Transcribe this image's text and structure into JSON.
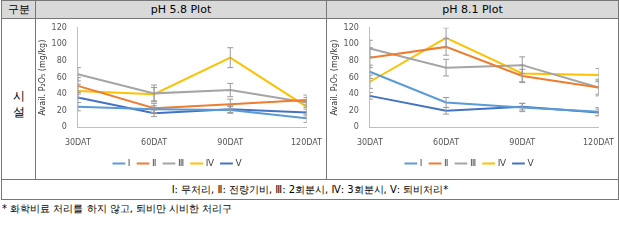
{
  "table": {
    "header": [
      "구분",
      "pH 5.8 Plot",
      "pH 8.1 Plot"
    ],
    "row_label": "시설",
    "legend_note": "Ⅰ: 무처리, Ⅱ: 전량기비, Ⅲ: 2회분시, Ⅳ: 3회분시, Ⅴ: 퇴비처리*"
  },
  "footnote": "* 화학비료 처리를 하지 않고, 퇴비만 시비한 처리구",
  "chart_data": [
    {
      "type": "line",
      "y_label": "Avail. P₂O₅ (mg/kg)",
      "categories": [
        "30DAT",
        "60DAT",
        "90DAT",
        "120DAT"
      ],
      "series": [
        {
          "name": "Ⅰ",
          "color": "#5b9bd5",
          "values": [
            25,
            22,
            21,
            11
          ],
          "errors": [
            5,
            4,
            4,
            5
          ]
        },
        {
          "name": "Ⅱ",
          "color": "#ed7d31",
          "values": [
            50,
            23,
            28,
            33
          ],
          "errors": [
            10,
            6,
            6,
            6
          ]
        },
        {
          "name": "Ⅲ",
          "color": "#a5a5a5",
          "values": [
            64,
            41,
            45,
            30
          ],
          "errors": [
            8,
            10,
            8,
            6
          ]
        },
        {
          "name": "Ⅳ",
          "color": "#ffc000",
          "values": [
            44,
            40,
            84,
            25
          ],
          "errors": [
            8,
            8,
            12,
            6
          ]
        },
        {
          "name": "Ⅴ",
          "color": "#4472c4",
          "values": [
            36,
            17,
            22,
            18
          ],
          "errors": [
            6,
            4,
            4,
            4
          ]
        }
      ],
      "ylim": [
        0,
        120
      ],
      "yticks": [
        0,
        20,
        40,
        60,
        80,
        100,
        120
      ],
      "grid": false,
      "legend": "bottom"
    },
    {
      "type": "line",
      "y_label": "Avail. P₂O₅ (mg/kg)",
      "categories": [
        "30DAT",
        "60DAT",
        "90DAT",
        "120DAT"
      ],
      "series": [
        {
          "name": "Ⅰ",
          "color": "#5b9bd5",
          "values": [
            67,
            30,
            24,
            19
          ],
          "errors": [
            8,
            6,
            5,
            5
          ]
        },
        {
          "name": "Ⅱ",
          "color": "#ed7d31",
          "values": [
            84,
            97,
            62,
            48
          ],
          "errors": [
            12,
            10,
            8,
            8
          ]
        },
        {
          "name": "Ⅲ",
          "color": "#a5a5a5",
          "values": [
            95,
            72,
            75,
            48
          ],
          "errors": [
            10,
            10,
            10,
            10
          ]
        },
        {
          "name": "Ⅳ",
          "color": "#ffc000",
          "values": [
            55,
            108,
            65,
            63
          ],
          "errors": [
            8,
            12,
            10,
            8
          ]
        },
        {
          "name": "Ⅴ",
          "color": "#4472c4",
          "values": [
            38,
            20,
            25,
            18
          ],
          "errors": [
            4,
            4,
            4,
            4
          ]
        }
      ],
      "ylim": [
        0,
        120
      ],
      "yticks": [
        0,
        20,
        40,
        60,
        80,
        100,
        120
      ],
      "grid": false,
      "legend": "bottom"
    }
  ]
}
